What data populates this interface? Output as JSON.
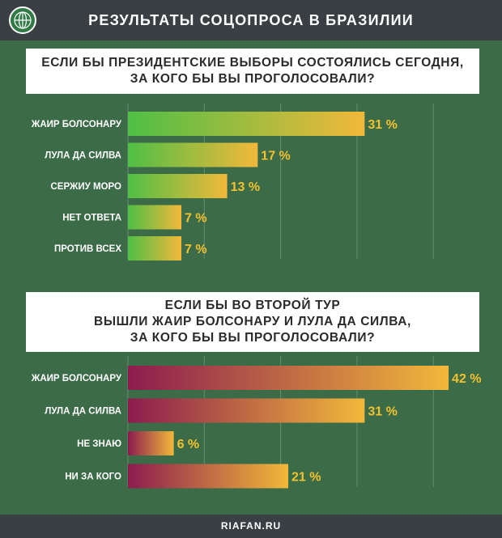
{
  "header": {
    "title": "РЕЗУЛЬТАТЫ СОЦОПРОСА В БРАЗИЛИИ"
  },
  "footer": {
    "source": "RIAFAN.RU"
  },
  "colors": {
    "background": "#3c6b48",
    "header_bg": "#3a3f44",
    "chart1_gradient": [
      "#4fbf45",
      "#f2b83a"
    ],
    "chart2_gradient": [
      "#8c1c4f",
      "#f2b83a"
    ],
    "value_label": "#f2c12e"
  },
  "chart_data": [
    {
      "type": "bar",
      "orientation": "horizontal",
      "title_lines": [
        "ЕСЛИ БЫ ПРЕЗИДЕНТСКИЕ ВЫБОРЫ СОСТОЯЛИСЬ СЕГОДНЯ,",
        "ЗА КОГО БЫ ВЫ ПРОГОЛОСОВАЛИ?"
      ],
      "categories": [
        "ЖАИР БОЛСОНАРУ",
        "ЛУЛА ДА СИЛВА",
        "СЕРЖИУ МОРО",
        "НЕТ ОТВЕТА",
        "ПРОТИВ ВСЕХ"
      ],
      "values": [
        31,
        17,
        13,
        7,
        7
      ],
      "value_labels": [
        "31 %",
        "17 %",
        "13 %",
        "7 %",
        "7 %"
      ],
      "unit": "%",
      "xlim": [
        0,
        42
      ],
      "grid": true
    },
    {
      "type": "bar",
      "orientation": "horizontal",
      "title_lines": [
        "ЕСЛИ БЫ ВО ВТОРОЙ ТУР",
        "ВЫШЛИ ЖАИР БОЛСОНАРУ И ЛУЛА ДА СИЛВА,",
        "ЗА КОГО БЫ ВЫ ПРОГОЛОСОВАЛИ?"
      ],
      "categories": [
        "ЖАИР БОЛСОНАРУ",
        "ЛУЛА ДА СИЛВА",
        "НЕ ЗНАЮ",
        "НИ ЗА КОГО"
      ],
      "values": [
        42,
        31,
        6,
        21
      ],
      "value_labels": [
        "42 %",
        "31 %",
        "6 %",
        "21 %"
      ],
      "unit": "%",
      "xlim": [
        0,
        42
      ],
      "grid": true
    }
  ]
}
